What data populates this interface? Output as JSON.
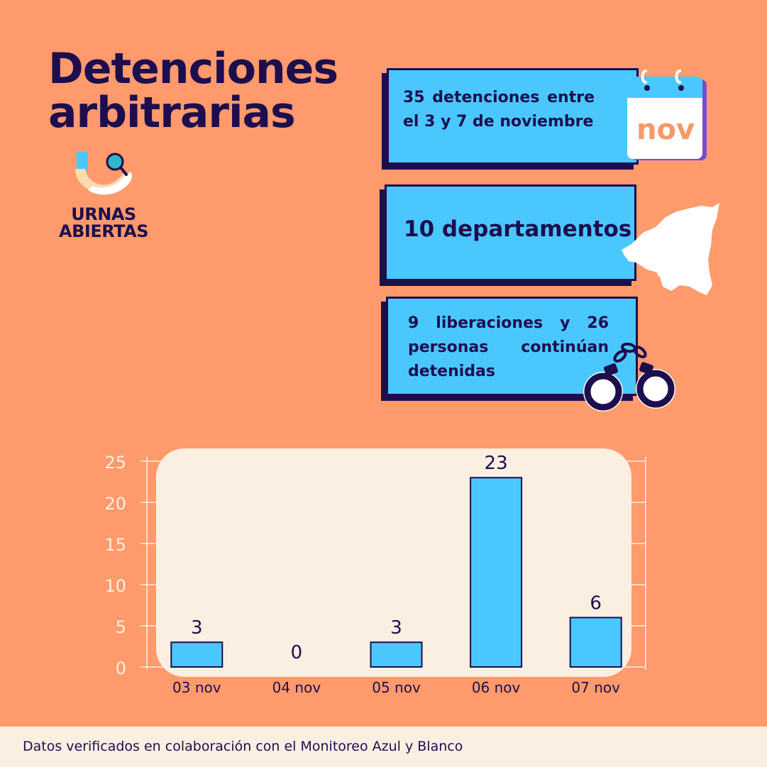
{
  "title": {
    "line1": "Detenciones",
    "line2": "arbitrarias"
  },
  "logo": {
    "text_line1": "URNAS",
    "text_line2": "ABIERTAS"
  },
  "cards": [
    {
      "text": "35 detenciones entre el 3 y 7 de noviembre",
      "icon": "calendar-icon",
      "icon_label": "nov"
    },
    {
      "text": "10 departamentos",
      "icon": "nicaragua-map-icon"
    },
    {
      "text": "9 liberaciones y 26 personas continúan detenidas",
      "icon": "handcuffs-icon"
    }
  ],
  "colors": {
    "background": "#FE9A6B",
    "navy": "#1D0E4E",
    "blue": "#4AC8FD",
    "cream": "#FBEFE2"
  },
  "chart_data": {
    "type": "bar",
    "categories": [
      "03 nov",
      "04 nov",
      "05 nov",
      "06 nov",
      "07 nov"
    ],
    "values": [
      3,
      0,
      3,
      23,
      6
    ],
    "data_labels": [
      "3",
      "0",
      "3",
      "23",
      "6"
    ],
    "ylim": [
      0,
      25
    ],
    "yticks": [
      0,
      5,
      10,
      15,
      20,
      25
    ],
    "grid": true,
    "title": "",
    "xlabel": "",
    "ylabel": ""
  },
  "footer": {
    "text": "Datos verificados en colaboración con el Monitoreo Azul y Blanco"
  }
}
